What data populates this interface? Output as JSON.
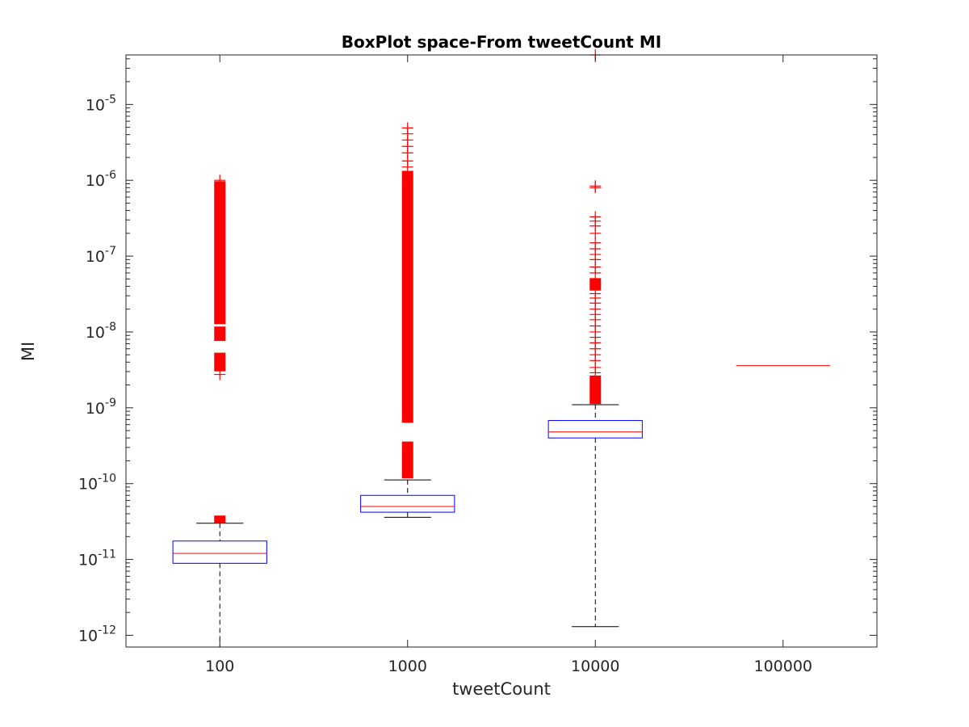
{
  "chart_data": {
    "type": "box",
    "title": "BoxPlot space-From tweetCount MI",
    "xlabel": "tweetCount",
    "ylabel": "MI",
    "yscale": "log",
    "ylim": [
      7e-13,
      4.5e-05
    ],
    "categories": [
      "100",
      "1000",
      "10000",
      "100000"
    ],
    "y_ticks": [
      {
        "value": 1e-12,
        "base": "10",
        "exponent": "-12"
      },
      {
        "value": 1e-11,
        "base": "10",
        "exponent": "-11"
      },
      {
        "value": 1e-10,
        "base": "10",
        "exponent": "-10"
      },
      {
        "value": 1e-09,
        "base": "10",
        "exponent": "-9"
      },
      {
        "value": 1e-08,
        "base": "10",
        "exponent": "-8"
      },
      {
        "value": 1e-07,
        "base": "10",
        "exponent": "-7"
      },
      {
        "value": 1e-06,
        "base": "10",
        "exponent": "-6"
      },
      {
        "value": 1e-05,
        "base": "10",
        "exponent": "-5"
      }
    ],
    "boxes": [
      {
        "category": "100",
        "whisker_low": 7e-13,
        "q1": 8.9e-12,
        "median": 1.2e-11,
        "q3": 1.75e-11,
        "whisker_high": 3e-11,
        "outlier_ranges": [
          [
            3.1e-11,
            3.7e-11
          ],
          [
            3.1e-09,
            5.2e-09
          ],
          [
            7.8e-09,
            1.15e-08
          ],
          [
            1.3e-08,
            9.5e-07
          ]
        ],
        "outlier_points": [
          2.75e-09,
          1e-06
        ]
      },
      {
        "category": "1000",
        "whisker_low": 3.6e-11,
        "q1": 4.2e-11,
        "median": 5e-11,
        "q3": 7e-11,
        "whisker_high": 1.12e-10,
        "outlier_ranges": [
          [
            1.2e-10,
            3.5e-10
          ],
          [
            6.5e-10,
            1.3e-06
          ]
        ],
        "outlier_points": [
          1.5e-06,
          1.8e-06,
          2.3e-06,
          2.8e-06,
          3.4e-06,
          4.1e-06,
          4.9e-06
        ]
      },
      {
        "category": "10000",
        "whisker_low": 1.3e-12,
        "q1": 4e-10,
        "median": 4.8e-10,
        "q3": 6.8e-10,
        "whisker_high": 1.1e-09,
        "outlier_ranges": [
          [
            1.15e-09,
            2.6e-09
          ],
          [
            3.6e-08,
            5e-08
          ]
        ],
        "outlier_points": [
          2.9e-09,
          3.4e-09,
          4.2e-09,
          5e-09,
          6e-09,
          7.2e-09,
          8.5e-09,
          1e-08,
          1.2e-08,
          1.45e-08,
          1.7e-08,
          2e-08,
          2.4e-08,
          2.8e-08,
          3.2e-08,
          6e-08,
          7.2e-08,
          9e-08,
          1.05e-07,
          1.25e-07,
          1.5e-07,
          2e-07,
          2.5e-07,
          2.9e-07,
          3.3e-07,
          8e-07,
          8.4e-07,
          4.5e-05
        ]
      },
      {
        "category": "100000",
        "whisker_low": 3.6e-09,
        "q1": 3.6e-09,
        "median": 3.6e-09,
        "q3": 3.6e-09,
        "whisker_high": 3.6e-09,
        "outlier_ranges": [],
        "outlier_points": []
      }
    ],
    "colors": {
      "box": "#0000ff",
      "median": "#ff0000",
      "outlier": "#ff0000",
      "whisker": "#000000"
    }
  }
}
